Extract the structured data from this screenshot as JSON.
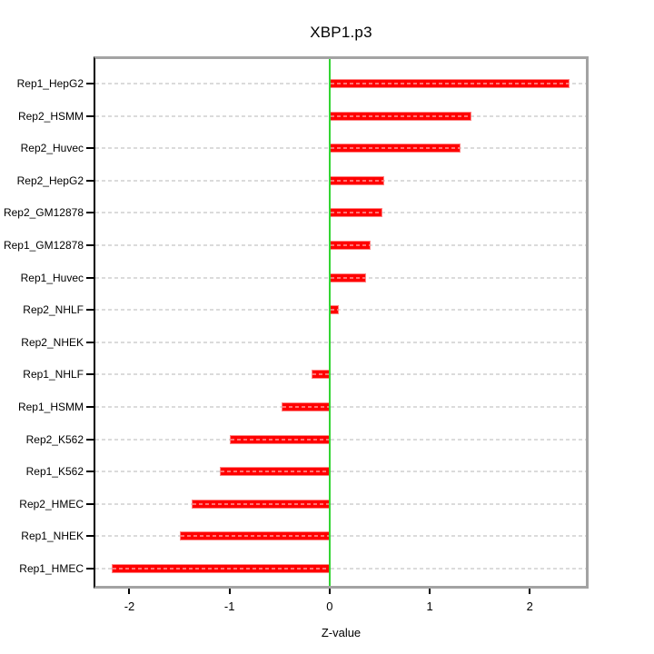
{
  "title": "XBP1.p3",
  "axis": {
    "xlabel": "Z-value"
  },
  "chart_data": {
    "type": "bar",
    "orientation": "horizontal",
    "title": "XBP1.p3",
    "xlabel": "Z-value",
    "ylabel": "",
    "categories": [
      "Rep1_HepG2",
      "Rep2_HSMM",
      "Rep2_Huvec",
      "Rep2_HepG2",
      "Rep2_GM12878",
      "Rep1_GM12878",
      "Rep1_Huvec",
      "Rep2_NHLF",
      "Rep2_NHEK",
      "Rep1_NHLF",
      "Rep1_HSMM",
      "Rep2_K562",
      "Rep1_K562",
      "Rep2_HMEC",
      "Rep1_NHEK",
      "Rep1_HMEC"
    ],
    "values": [
      2.4,
      1.42,
      1.31,
      0.55,
      0.53,
      0.41,
      0.36,
      0.09,
      0.0,
      -0.18,
      -0.48,
      -1.0,
      -1.1,
      -1.38,
      -1.5,
      -2.18
    ],
    "x_ticks": [
      -2,
      -1,
      0,
      1,
      2
    ],
    "xlim": [
      -2.34,
      2.56
    ],
    "grid": {
      "show": true,
      "style": "dashed",
      "per_row": true
    },
    "zero_line": {
      "x": 0
    },
    "legend": null,
    "colors": {
      "bar_fill": "#FF0000",
      "bar_edge": "#FF8585",
      "bar_dash_overlay": "rgba(255,255,255,0.45)",
      "zero_line": "#33D433",
      "grid_line": "#DBDBDB",
      "box_border": "#A3A3A3",
      "axis_line": "#000000",
      "background": "#FFFFFF",
      "text": "#000000"
    }
  }
}
